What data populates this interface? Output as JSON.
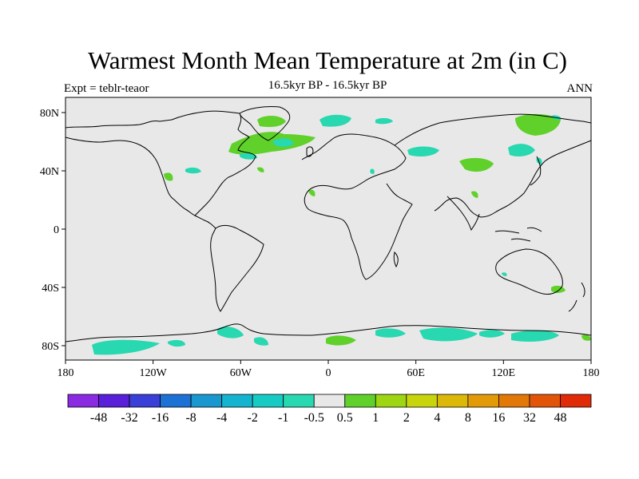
{
  "title": "Warmest Month Mean Temperature at 2m (in C)",
  "subtitle": "16.5kyr BP - 16.5kyr BP",
  "left_label": "Expt = teblr-teaor",
  "right_label": "ANN",
  "map": {
    "land_fill": "#e8e8e8",
    "coast_color": "#000000",
    "lat_ticks": [
      {
        "value": 80,
        "label": "80N"
      },
      {
        "value": 40,
        "label": "40N"
      },
      {
        "value": 0,
        "label": "0"
      },
      {
        "value": -40,
        "label": "40S"
      },
      {
        "value": -80,
        "label": "80S"
      }
    ],
    "lon_ticks": [
      {
        "value": -180,
        "label": "180"
      },
      {
        "value": -120,
        "label": "120W"
      },
      {
        "value": -60,
        "label": "60W"
      },
      {
        "value": 0,
        "label": "0"
      },
      {
        "value": 60,
        "label": "60E"
      },
      {
        "value": 120,
        "label": "120E"
      },
      {
        "value": 180,
        "label": "180"
      }
    ]
  },
  "colorbar": {
    "colors": [
      "#8a2be2",
      "#5a1fd8",
      "#3a3fd8",
      "#1c72d4",
      "#1998d0",
      "#14b4d0",
      "#16cbc4",
      "#27d8b0",
      "#e8e8e8",
      "#5fd12a",
      "#9ed614",
      "#c8d40c",
      "#dcb808",
      "#e29a08",
      "#e27808",
      "#e25408",
      "#e02a08"
    ],
    "labels": [
      "-48",
      "-32",
      "-16",
      "-8",
      "-4",
      "-2",
      "-1",
      "-0.5",
      "0.5",
      "1",
      "2",
      "4",
      "8",
      "16",
      "32",
      "48"
    ]
  }
}
